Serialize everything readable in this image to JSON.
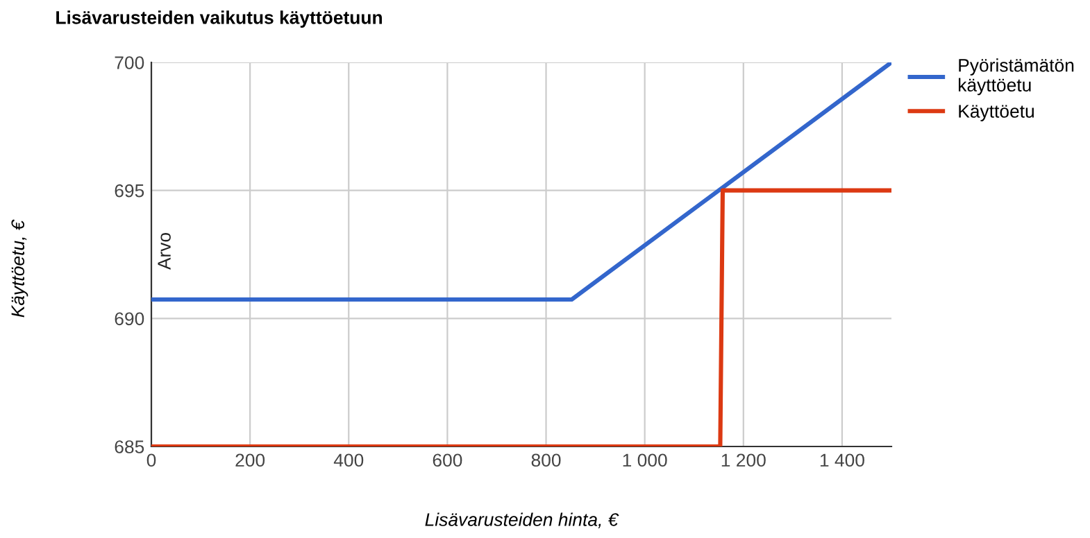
{
  "chart_data": {
    "type": "line",
    "title": "Lisävarusteiden vaikutus käyttöetuun",
    "xlabel": "Lisävarusteiden hinta, €",
    "ylabel": "Käyttöetu, €",
    "series": [
      {
        "name": "Pyöristämätön käyttöetu",
        "color": "#3366cc",
        "x": [
          0,
          852,
          1500
        ],
        "values": [
          690.74,
          690.74,
          700
        ]
      },
      {
        "name": "Käyttöetu",
        "color": "#dc3912",
        "x": [
          0,
          1153,
          1158,
          1500
        ],
        "values": [
          685,
          685,
          695,
          695
        ]
      }
    ],
    "xlim": [
      0,
      1500
    ],
    "xticks": [
      0,
      200,
      400,
      600,
      800,
      {
        "value": 1000,
        "label": "1 000"
      },
      {
        "value": 1200,
        "label": "1 200"
      },
      {
        "value": 1400,
        "label": "1 400"
      }
    ],
    "ylim": [
      685,
      700
    ],
    "yticks": [
      685,
      690,
      695,
      700
    ],
    "annotations": [
      "Arvo"
    ],
    "grid": true,
    "legend": "top right",
    "line_style": "solid",
    "marker": "none"
  }
}
